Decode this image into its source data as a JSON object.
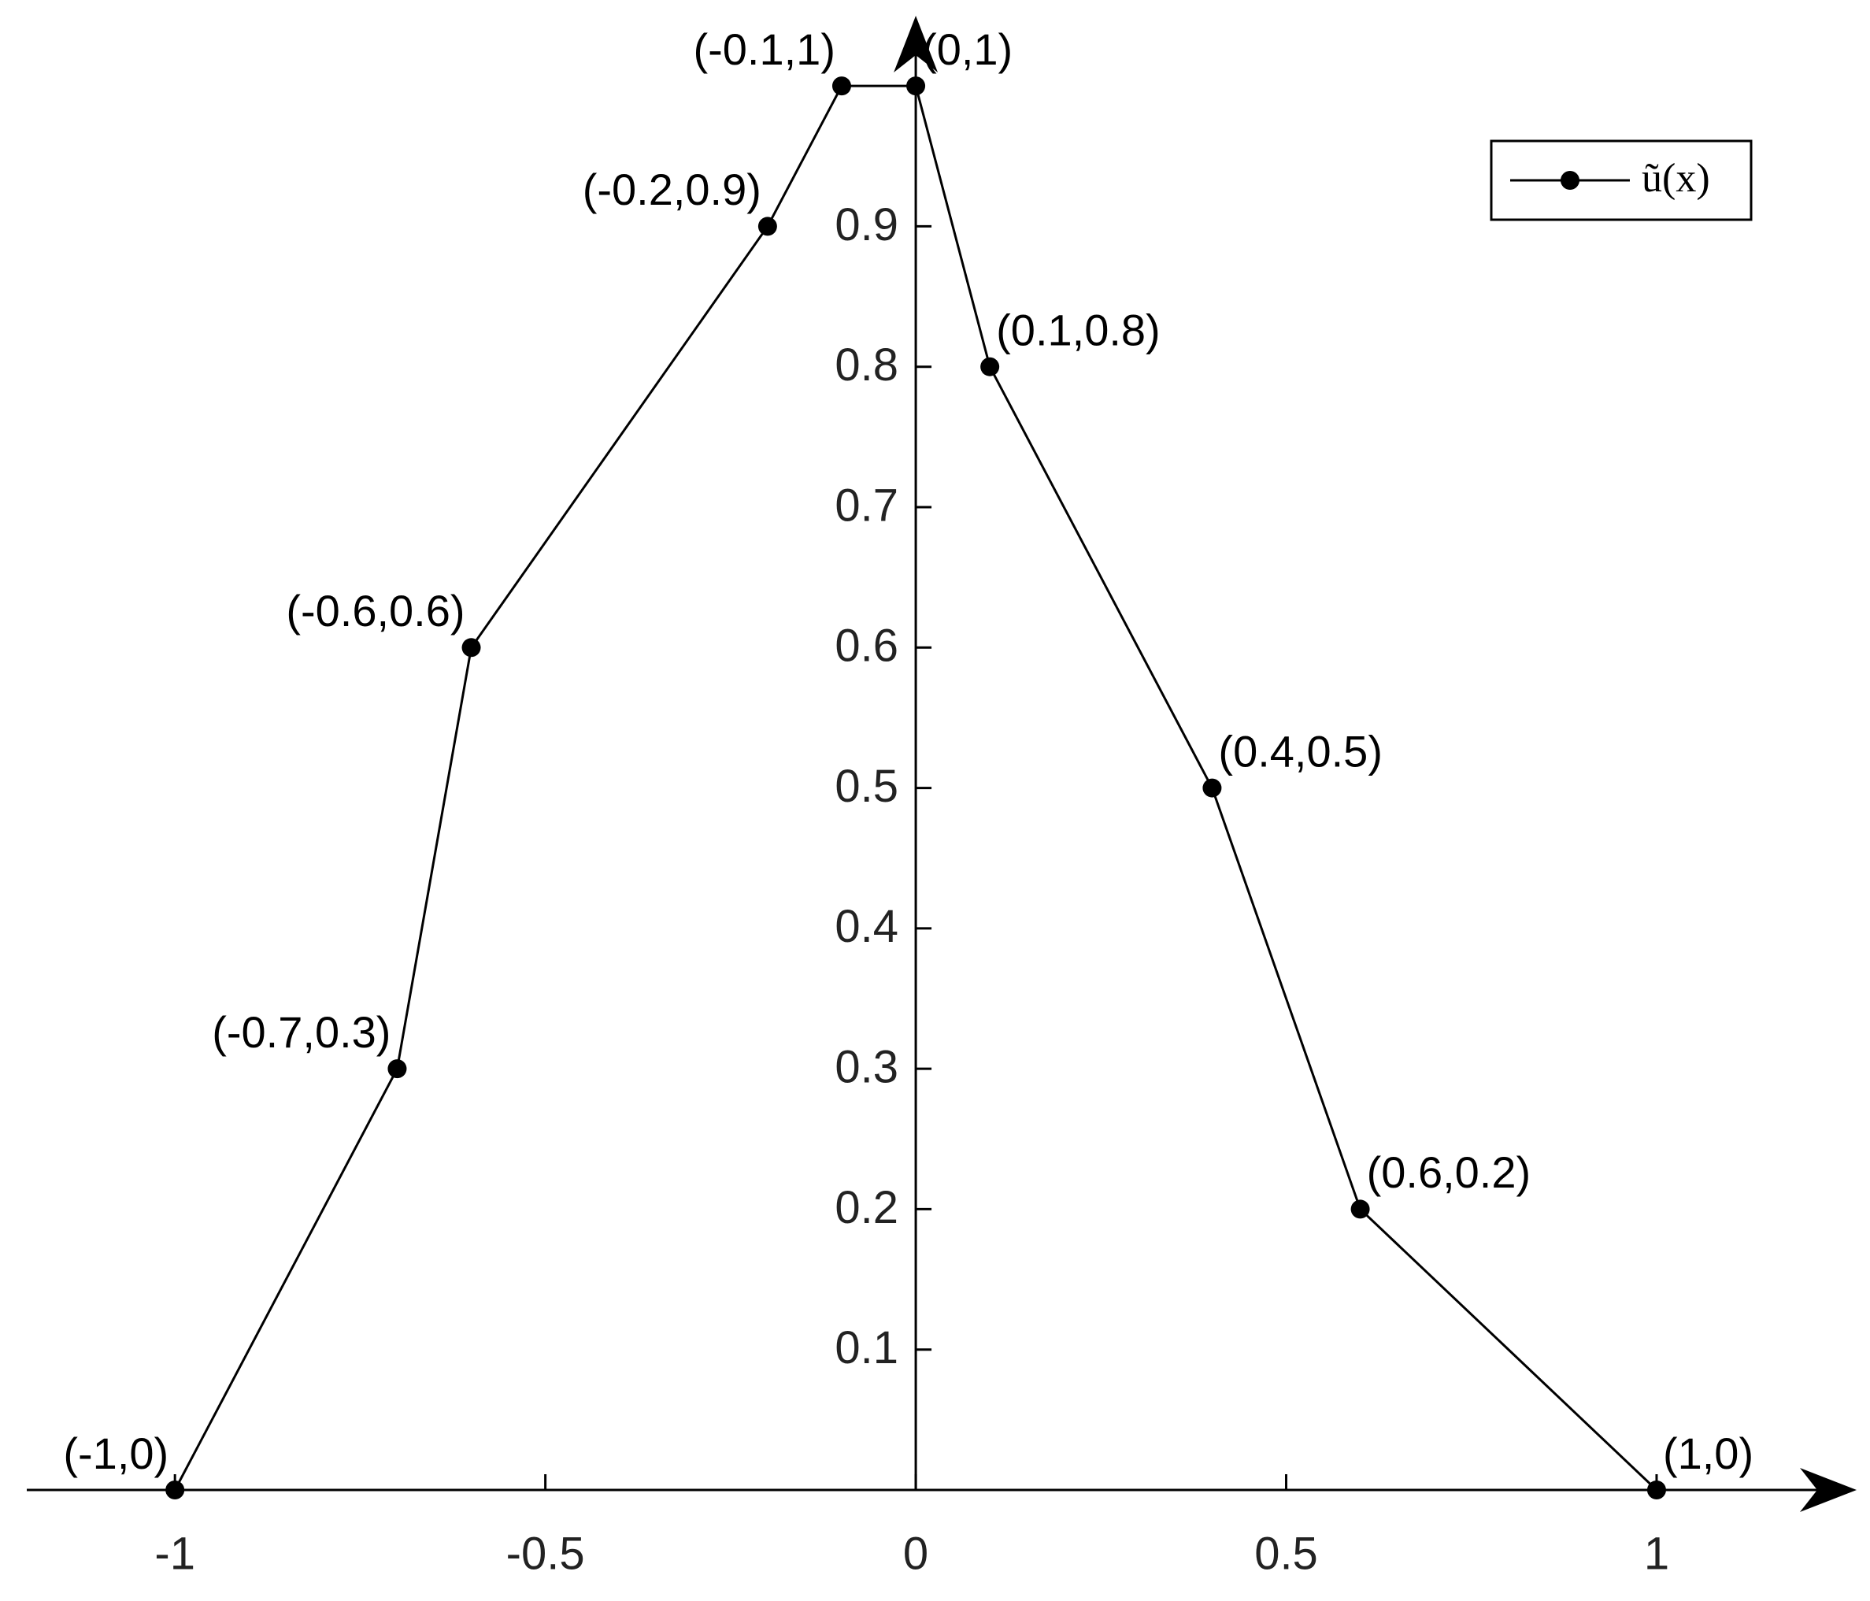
{
  "chart_data": {
    "type": "line",
    "x": [
      -1,
      -0.7,
      -0.6,
      -0.2,
      -0.1,
      0,
      0.1,
      0.4,
      0.6,
      1
    ],
    "series": [
      {
        "name": "ũ(x)",
        "color": "#000000",
        "values": [
          0,
          0.3,
          0.6,
          0.9,
          1,
          1,
          0.8,
          0.5,
          0.2,
          0
        ],
        "value_labels": [
          "(-1,0)",
          "(-0.7,0.3)",
          "(-0.6,0.6)",
          "(-0.2,0.9)",
          "(-0.1,1)",
          "(0,1)",
          "(0.1,0.8)",
          "(0.4,0.5)",
          "(0.6,0.2)",
          "(1,0)"
        ]
      }
    ],
    "xlim": [
      -1.2,
      1.27
    ],
    "ylim": [
      0,
      1.05
    ],
    "xticks": [
      -1,
      -0.5,
      0,
      0.5,
      1
    ],
    "yticks": [
      0.1,
      0.2,
      0.3,
      0.4,
      0.5,
      0.6,
      0.7,
      0.8,
      0.9
    ],
    "grid": false,
    "legend": "upper right"
  }
}
